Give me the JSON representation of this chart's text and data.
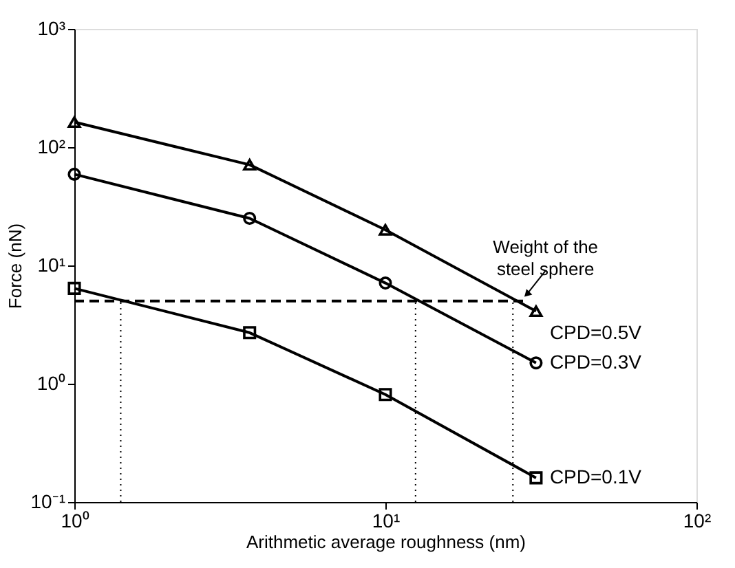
{
  "chart_data": {
    "type": "line",
    "xlabel": "Arithmetic average roughness (nm)",
    "ylabel": "Force (nN)",
    "log": "xy",
    "grid": false,
    "line_style": "solid",
    "xlim": [
      1,
      100
    ],
    "ylim": [
      0.1,
      1000
    ],
    "xticks": [
      {
        "value": 1,
        "label": "10⁰"
      },
      {
        "value": 10,
        "label": "10¹"
      },
      {
        "value": 100,
        "label": "10²"
      }
    ],
    "yticks": [
      {
        "value": 0.1,
        "label": "10⁻¹"
      },
      {
        "value": 1,
        "label": "10⁰"
      },
      {
        "value": 10,
        "label": "10¹"
      },
      {
        "value": 100,
        "label": "10²"
      },
      {
        "value": 1000,
        "label": "10³"
      }
    ],
    "series": [
      {
        "name": "CPD=0.5V",
        "color": "#000000",
        "marker": "triangle",
        "x": [
          1,
          3.66,
          10,
          30.5
        ],
        "values": [
          163,
          71,
          20,
          4.1
        ]
      },
      {
        "name": "CPD=0.3V",
        "color": "#000000",
        "marker": "circle",
        "x": [
          1,
          3.66,
          10,
          30.5
        ],
        "values": [
          59,
          25,
          7.1,
          1.5
        ]
      },
      {
        "name": "CPD=0.1V",
        "color": "#000000",
        "marker": "square",
        "x": [
          1,
          3.66,
          10,
          30.5
        ],
        "values": [
          6.4,
          2.7,
          0.81,
          0.16
        ]
      },
      {
        "color": "#000000",
        "marker": "none",
        "line_style": "dashed",
        "x": [
          1,
          28.7
        ],
        "values": [
          5,
          5
        ]
      },
      {
        "color": "#000000",
        "marker": "none",
        "line_style": "dotted",
        "x": [
          1.41,
          1.41
        ],
        "values": [
          0.1,
          5
        ]
      },
      {
        "color": "#000000",
        "marker": "none",
        "line_style": "dotted",
        "x": [
          12.5,
          12.5
        ],
        "values": [
          0.1,
          5
        ]
      },
      {
        "color": "#000000",
        "marker": "none",
        "line_style": "dotted",
        "x": [
          25.7,
          25.7
        ],
        "values": [
          0.1,
          5
        ]
      }
    ],
    "annotations": [
      {
        "text": "Weight of the steel sphere",
        "x": 28.5,
        "y": 5.7
      }
    ]
  }
}
